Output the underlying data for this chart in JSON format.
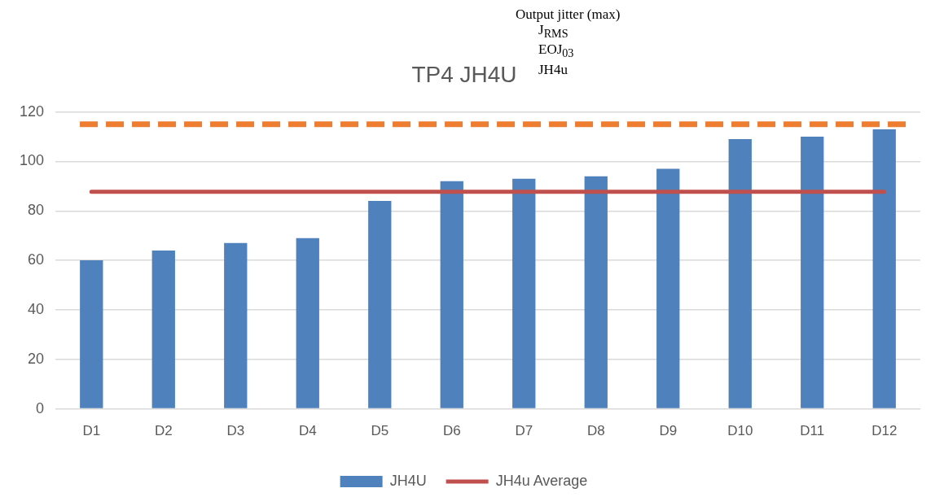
{
  "chart_data": {
    "type": "bar",
    "title": "TP4 JH4U",
    "categories": [
      "D1",
      "D2",
      "D3",
      "D4",
      "D5",
      "D6",
      "D7",
      "D8",
      "D9",
      "D10",
      "D11",
      "D12"
    ],
    "series": [
      {
        "name": "JH4U",
        "color": "#4f81bd",
        "values": [
          60,
          64,
          67,
          69,
          84,
          92,
          93,
          94,
          97,
          109,
          110,
          113
        ]
      },
      {
        "name": "JH4u Average",
        "type": "line",
        "color": "#c0504d",
        "values": [
          87.7,
          87.7,
          87.7,
          87.7,
          87.7,
          87.7,
          87.7,
          87.7,
          87.7,
          87.7,
          87.7,
          87.7
        ]
      }
    ],
    "ylim": [
      0,
      120
    ],
    "yticks": [
      0,
      20,
      40,
      60,
      80,
      100,
      120
    ],
    "ref_lines": [
      {
        "axis": "y",
        "value": 115,
        "color": "#ed7d31",
        "line_style": "dashed"
      }
    ],
    "annotations": [
      "Output jitter (max)",
      "J$_{RMS}$",
      "EOJ$_{03}$",
      "JH4u"
    ],
    "grid": "y",
    "legend": "bottom",
    "marker": "none"
  }
}
